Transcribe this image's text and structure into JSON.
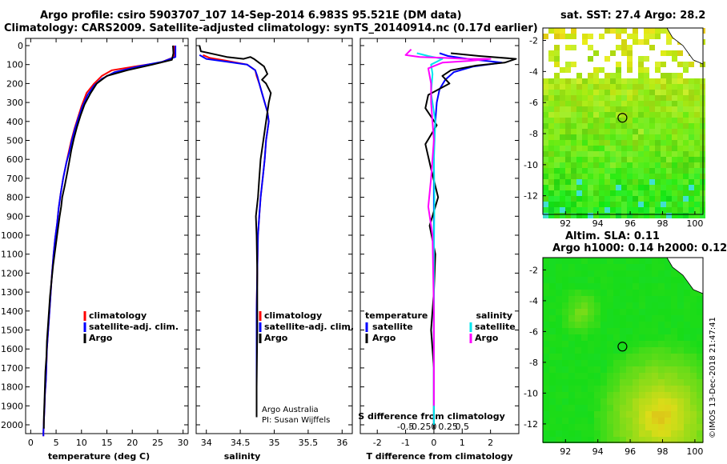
{
  "title": {
    "line1": "Argo profile: csiro 5903707_107 14-Sep-2014 6.983S 95.521E (DM data)",
    "line2": "Climatology: CARS2009. Satellite-adjusted climatology: synTS_20140914.nc (0.17d earlier)"
  },
  "colors": {
    "climatology": "#ff0000",
    "satellite": "#0000ff",
    "argo": "#000000",
    "sal_satellite": "#00e5ee",
    "sal_argo": "#ff00ff",
    "marker": "#000000"
  },
  "chart_data": [
    {
      "id": "temperature",
      "type": "line",
      "xlabel": "temperature (deg C)",
      "ylabel": "",
      "xlim": [
        -1,
        31
      ],
      "ylim": [
        2060,
        0
      ],
      "xticks": [
        "0",
        "5",
        "10",
        "15",
        "20",
        "25",
        "30"
      ],
      "xtick_values": [
        0,
        5,
        10,
        15,
        20,
        25,
        30
      ],
      "yticks": [
        "0",
        "100",
        "200",
        "300",
        "400",
        "500",
        "600",
        "700",
        "800",
        "900",
        "1000",
        "1100",
        "1200",
        "1300",
        "1400",
        "1500",
        "1600",
        "1700",
        "1800",
        "1900",
        "2000"
      ],
      "ytick_values": [
        0,
        100,
        200,
        300,
        400,
        500,
        600,
        700,
        800,
        900,
        1000,
        1100,
        1200,
        1300,
        1400,
        1500,
        1600,
        1700,
        1800,
        1900,
        2000
      ],
      "legend": [
        "climatology",
        "satellite-adj. clim.",
        "Argo"
      ],
      "series": [
        {
          "name": "climatology",
          "color_key": "climatology",
          "x": [
            28.3,
            28.3,
            25.5,
            20.5,
            16,
            14,
            12.5,
            11,
            10,
            9.3,
            8.6,
            8,
            7.5,
            7,
            6.4,
            5.9,
            5.5,
            5.2,
            4.8,
            4.5,
            4.2,
            4,
            3.8,
            3.6,
            3.4,
            3.2,
            3.1,
            3.0,
            2.8,
            2.7,
            2.6,
            2.5,
            2.5
          ],
          "y": [
            0,
            60,
            90,
            110,
            130,
            160,
            200,
            250,
            320,
            380,
            440,
            500,
            560,
            620,
            700,
            780,
            860,
            940,
            1020,
            1100,
            1200,
            1280,
            1360,
            1440,
            1520,
            1600,
            1680,
            1760,
            1840,
            1920,
            1980,
            2040,
            2060
          ]
        },
        {
          "name": "satellite-adj. clim.",
          "color_key": "satellite",
          "x": [
            28.5,
            28.5,
            26,
            21.5,
            16.5,
            14,
            12.5,
            11.2,
            10.2,
            9.4,
            8.7,
            8.1,
            7.6,
            7.0,
            6.4,
            5.9,
            5.5,
            5.2,
            4.8,
            4.5,
            4.2,
            4,
            3.8,
            3.6,
            3.4,
            3.2,
            3.1,
            3.0,
            2.8,
            2.7,
            2.6,
            2.5,
            2.5
          ],
          "y": [
            0,
            60,
            85,
            108,
            140,
            175,
            210,
            260,
            320,
            380,
            440,
            500,
            560,
            620,
            700,
            780,
            860,
            940,
            1020,
            1100,
            1200,
            1280,
            1360,
            1440,
            1520,
            1600,
            1680,
            1760,
            1840,
            1920,
            1980,
            2040,
            2060
          ]
        },
        {
          "name": "Argo",
          "color_key": "argo",
          "x": [
            28,
            28.1,
            27.8,
            24,
            19,
            15,
            13,
            11.8,
            10.6,
            9.8,
            9.1,
            8.5,
            8.0,
            7.6,
            7.2,
            6.7,
            6.2,
            6.0,
            5.7,
            5.2,
            4.8,
            4.4,
            4.1,
            3.8,
            3.6,
            3.4,
            3.2,
            3.1,
            2.9,
            2.8,
            2.7,
            2.6,
            2.6
          ],
          "y": [
            0,
            40,
            75,
            100,
            130,
            160,
            200,
            250,
            310,
            370,
            430,
            490,
            550,
            610,
            670,
            740,
            800,
            850,
            900,
            1000,
            1080,
            1160,
            1240,
            1320,
            1400,
            1480,
            1560,
            1640,
            1720,
            1800,
            1880,
            1960,
            2020
          ]
        }
      ]
    },
    {
      "id": "salinity",
      "type": "line",
      "xlabel": "salinity",
      "ylabel": "",
      "xlim": [
        33.85,
        36.15
      ],
      "ylim": [
        2060,
        0
      ],
      "xticks": [
        "34",
        "34.5",
        "35",
        "35.5",
        "36"
      ],
      "xtick_values": [
        34,
        34.5,
        35,
        35.5,
        36
      ],
      "legend": [
        "climatology",
        "satellite-adj. clim.",
        "Argo"
      ],
      "series": [
        {
          "name": "climatology",
          "color_key": "climatology",
          "x": [
            33.95,
            34.05,
            34.3,
            34.6,
            34.72,
            34.74,
            34.78,
            34.82,
            34.86,
            34.9,
            34.92,
            34.9,
            34.88,
            34.86,
            34.83,
            34.8,
            34.78,
            34.76,
            34.75,
            34.74,
            34.74,
            34.74,
            34.74
          ],
          "y": [
            50,
            65,
            80,
            100,
            130,
            160,
            200,
            250,
            300,
            350,
            400,
            450,
            500,
            600,
            700,
            800,
            900,
            1000,
            1200,
            1400,
            1600,
            1800,
            1960
          ]
        },
        {
          "name": "satellite-adj. clim.",
          "color_key": "satellite",
          "x": [
            33.9,
            34.0,
            34.3,
            34.6,
            34.72,
            34.75,
            34.78,
            34.82,
            34.86,
            34.9,
            34.92,
            34.9,
            34.88,
            34.86,
            34.83,
            34.8,
            34.78,
            34.76,
            34.75,
            34.74,
            34.74,
            34.74,
            34.74
          ],
          "y": [
            50,
            70,
            85,
            100,
            130,
            160,
            200,
            250,
            300,
            350,
            400,
            450,
            500,
            600,
            700,
            800,
            900,
            1000,
            1200,
            1400,
            1600,
            1800,
            1960
          ]
        },
        {
          "name": "Argo",
          "color_key": "argo",
          "x": [
            33.9,
            33.92,
            34.3,
            34.55,
            34.65,
            34.7,
            34.85,
            34.9,
            34.82,
            34.88,
            34.95,
            34.92,
            34.9,
            34.88,
            34.84,
            34.8,
            34.78,
            34.76,
            34.73,
            34.74,
            34.75,
            34.75,
            34.74,
            34.74
          ],
          "y": [
            0,
            30,
            60,
            70,
            60,
            70,
            110,
            150,
            180,
            200,
            250,
            300,
            350,
            400,
            500,
            600,
            700,
            800,
            900,
            1000,
            1200,
            1500,
            1800,
            1960
          ]
        }
      ],
      "annotations": [
        "Argo Australia",
        "PI: Susan Wijffels"
      ]
    },
    {
      "id": "difference",
      "type": "line",
      "xlabel": "T difference from climatology",
      "top_xlabel": "S difference from climatology",
      "ylabel": "",
      "xlim": [
        -2.6,
        3
      ],
      "ylim": [
        2060,
        0
      ],
      "xticks": [
        "-2",
        "-1",
        "0",
        "1",
        "2"
      ],
      "xtick_values": [
        -2,
        -1,
        0,
        1,
        2
      ],
      "top_xticks": [
        "-0.5",
        "-0.25",
        "0",
        "0.25",
        "0.5"
      ],
      "top_xtick_values": [
        -1.0,
        -0.5,
        0,
        0.5,
        1.0
      ],
      "legend_left_header": "temperature",
      "legend_left": [
        "satellite",
        "Argo"
      ],
      "legend_right_header": "salinity",
      "legend_right": [
        "satellite",
        "Argo"
      ],
      "series": [
        {
          "name": "temperature satellite",
          "color_key": "satellite",
          "x": [
            0.2,
            0.5,
            1.2,
            2.4,
            1.4,
            0.7,
            0.4,
            0.2,
            0.1,
            0.05,
            0.0,
            0.0,
            0.0,
            0.0,
            0.0,
            0.0,
            0.0
          ],
          "y": [
            40,
            55,
            70,
            90,
            110,
            140,
            180,
            230,
            300,
            400,
            500,
            700,
            900,
            1100,
            1400,
            1700,
            2000
          ]
        },
        {
          "name": "temperature Argo",
          "color_key": "argo",
          "x": [
            0.6,
            1.6,
            2.9,
            2.5,
            1.5,
            0.6,
            0.3,
            0.55,
            -0.2,
            -0.3,
            0.1,
            -0.3,
            -0.1,
            0.15,
            -0.15,
            0.05,
            0.0,
            -0.1,
            0.0,
            0.0,
            0.0
          ],
          "y": [
            40,
            55,
            70,
            90,
            105,
            130,
            160,
            200,
            260,
            330,
            420,
            520,
            650,
            800,
            950,
            1100,
            1300,
            1500,
            1700,
            1900,
            2020
          ]
        },
        {
          "name": "salinity satellite",
          "color_key": "sal_satellite",
          "x": [
            -0.6,
            -0.2,
            0.3,
            -0.1,
            -0.05,
            -0.1,
            0.05,
            0.0,
            0.02,
            0.0,
            0.0,
            0.0
          ],
          "y": [
            40,
            55,
            70,
            100,
            150,
            250,
            400,
            600,
            800,
            1100,
            1500,
            2000
          ]
        },
        {
          "name": "salinity Argo",
          "color_key": "sal_argo",
          "x": [
            -0.8,
            -1.0,
            -0.5,
            0.4,
            1.1,
            2.0,
            1.3,
            0.3,
            -0.2,
            -0.1,
            -0.1,
            0.0,
            -0.1,
            -0.2,
            -0.05,
            0.0,
            0.0
          ],
          "y": [
            20,
            50,
            60,
            65,
            70,
            70,
            80,
            90,
            120,
            200,
            300,
            500,
            700,
            850,
            1000,
            1400,
            1900
          ]
        }
      ]
    },
    {
      "id": "sst-map",
      "type": "heatmap",
      "title": "sat. SST: 27.4 Argo: 28.2",
      "xticks": [
        "92",
        "94",
        "96",
        "98",
        "100"
      ],
      "yticks": [
        "-2",
        "-4",
        "-6",
        "-8",
        "-10",
        "-12"
      ],
      "xlim": [
        90.6,
        100.5
      ],
      "ylim": [
        -13.2,
        -1.2
      ],
      "marker": {
        "lon": 95.52,
        "lat": -6.98
      }
    },
    {
      "id": "sla-map",
      "type": "heatmap",
      "title": "Altim. SLA: 0.11",
      "subtitle": "Argo h1000: 0.14 h2000: 0.12",
      "xticks": [
        "92",
        "94",
        "96",
        "98",
        "100"
      ],
      "yticks": [
        "-2",
        "-4",
        "-6",
        "-8",
        "-10",
        "-12"
      ],
      "xlim": [
        90.6,
        100.5
      ],
      "ylim": [
        -13.2,
        -1.2
      ],
      "marker": {
        "lon": 95.52,
        "lat": -6.98
      }
    }
  ],
  "stamp": "©IMOS 13-Dec-2018 21:47:41"
}
